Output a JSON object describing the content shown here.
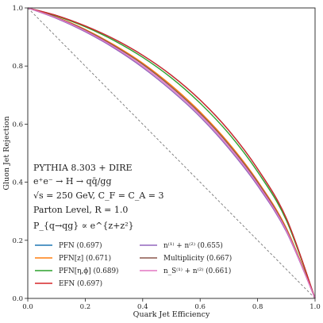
{
  "chart_data": {
    "type": "line",
    "xlabel": "Quark Jet Efficiency",
    "ylabel": "Gluon Jet Rejection",
    "xlim": [
      0.0,
      1.0
    ],
    "ylim": [
      0.0,
      1.0
    ],
    "grid": false,
    "legend_position": "bottom",
    "xticks": [
      "0.0",
      "0.2",
      "0.4",
      "0.6",
      "0.8",
      "1.0"
    ],
    "yticks": [
      "0.0",
      "0.2",
      "0.4",
      "0.6",
      "0.8",
      "1.0"
    ],
    "annotation_lines": [
      "PYTHIA 8.303 + DIRE",
      "e⁺e⁻ → H → qq̄/gg",
      "√s = 250 GeV, C_F = C_A = 3",
      "Parton Level, R = 1.0",
      "P_{q→qg} ∝ e^{z+z²}"
    ],
    "random_line": {
      "x": [
        0.0,
        1.0
      ],
      "y": [
        1.0,
        0.0
      ],
      "style": "dashed",
      "color": "#777777"
    },
    "series": [
      {
        "name": "PFN (0.697)",
        "color": "#1f77b4",
        "x": [
          0,
          0.1,
          0.2,
          0.3,
          0.4,
          0.5,
          0.6,
          0.7,
          0.8,
          0.9,
          1.0
        ],
        "y": [
          1.0,
          0.974,
          0.938,
          0.893,
          0.837,
          0.768,
          0.683,
          0.578,
          0.446,
          0.276,
          0.0
        ]
      },
      {
        "name": "PFN[z] (0.671)",
        "color": "#ff7f0e",
        "x": [
          0,
          0.1,
          0.2,
          0.3,
          0.4,
          0.5,
          0.6,
          0.7,
          0.8,
          0.9,
          1.0
        ],
        "y": [
          1.0,
          0.968,
          0.926,
          0.873,
          0.81,
          0.733,
          0.642,
          0.534,
          0.404,
          0.242,
          0.0
        ]
      },
      {
        "name": "PFN[η,ϕ] (0.689)",
        "color": "#2ca02c",
        "x": [
          0,
          0.1,
          0.2,
          0.3,
          0.4,
          0.5,
          0.6,
          0.7,
          0.8,
          0.9,
          1.0
        ],
        "y": [
          1.0,
          0.972,
          0.935,
          0.888,
          0.83,
          0.759,
          0.672,
          0.567,
          0.436,
          0.269,
          0.0
        ]
      },
      {
        "name": "EFN (0.697)",
        "color": "#d62728",
        "x": [
          0,
          0.1,
          0.2,
          0.3,
          0.4,
          0.5,
          0.6,
          0.7,
          0.8,
          0.9,
          1.0
        ],
        "y": [
          1.0,
          0.974,
          0.938,
          0.893,
          0.837,
          0.768,
          0.683,
          0.578,
          0.446,
          0.276,
          0.0
        ]
      },
      {
        "name": "n⁽¹⁾ + n⁽²⁾ (0.655)",
        "color": "#9467bd",
        "x": [
          0,
          0.1,
          0.2,
          0.3,
          0.4,
          0.5,
          0.6,
          0.7,
          0.8,
          0.9,
          1.0
        ],
        "y": [
          1.0,
          0.964,
          0.918,
          0.862,
          0.795,
          0.716,
          0.625,
          0.516,
          0.388,
          0.23,
          0.0
        ]
      },
      {
        "name": "Multiplicity (0.667)",
        "color": "#8c564b",
        "x": [
          0,
          0.1,
          0.2,
          0.3,
          0.4,
          0.5,
          0.6,
          0.7,
          0.8,
          0.9,
          1.0
        ],
        "y": [
          1.0,
          0.967,
          0.924,
          0.87,
          0.806,
          0.728,
          0.637,
          0.529,
          0.4,
          0.238,
          0.0
        ]
      },
      {
        "name": "n_S⁽¹⁾ + n⁽²⁾ (0.661)",
        "color": "#e377c2",
        "x": [
          0,
          0.1,
          0.2,
          0.3,
          0.4,
          0.5,
          0.6,
          0.7,
          0.8,
          0.9,
          1.0
        ],
        "y": [
          1.0,
          0.966,
          0.921,
          0.866,
          0.8,
          0.722,
          0.631,
          0.522,
          0.394,
          0.234,
          0.0
        ]
      }
    ]
  }
}
